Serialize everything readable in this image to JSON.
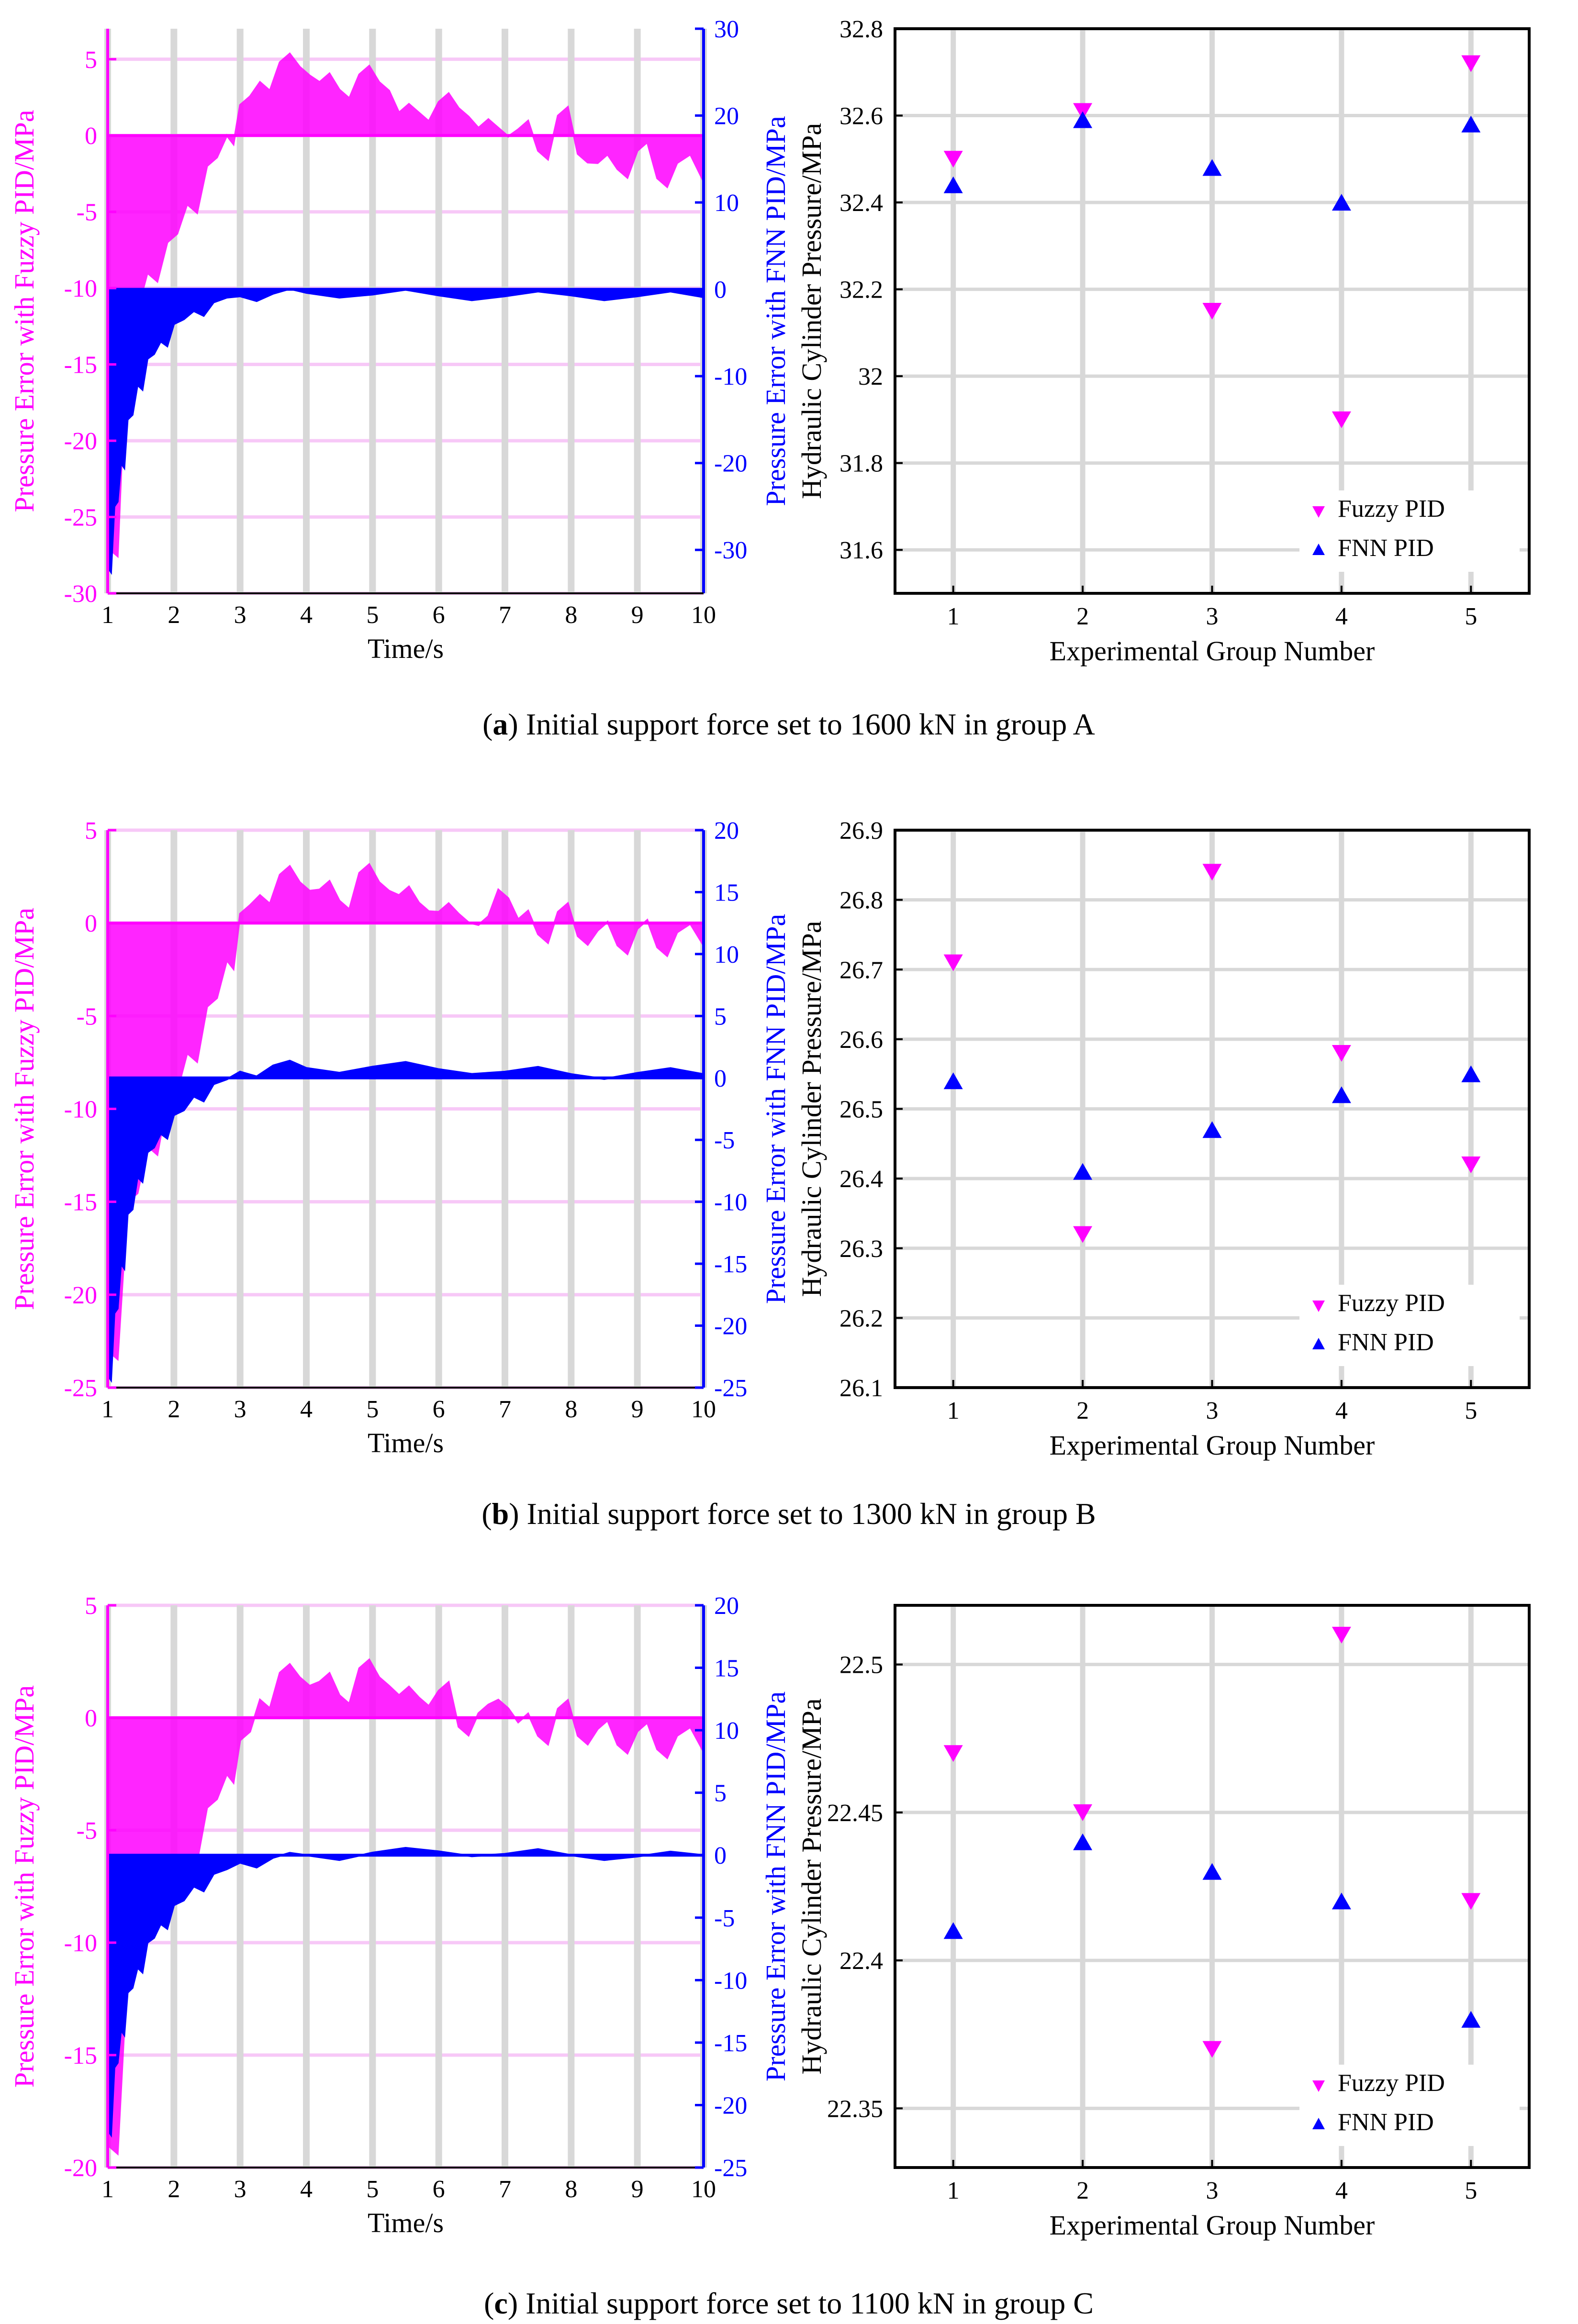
{
  "colors": {
    "fuzzy": "#ff00ff",
    "fnn": "#0000ff",
    "grid_gray": "#d8d8d8",
    "grid_pink": "#f7c8f7"
  },
  "panels": [
    {
      "id": "a",
      "caption": {
        "letter": "a",
        "text": " Initial support force set to 1600 kN in group A"
      },
      "error_chart": {
        "type": "area",
        "xlabel": "Time/s",
        "ylabel_left": "Pressure Error with Fuzzy PID/MPa",
        "ylabel_right": "Pressure Error with FNN PID/MPa",
        "xlim": [
          1,
          10
        ],
        "x_ticks": [
          "1",
          "2",
          "3",
          "4",
          "5",
          "6",
          "7",
          "8",
          "9",
          "10"
        ],
        "left_ylim": [
          -30,
          7
        ],
        "left_ticks": [
          "5",
          "0",
          "-5",
          "-10",
          "-15",
          "-20",
          "-25",
          "-30"
        ],
        "right_ylim": [
          -35,
          30
        ],
        "right_ticks": [
          "30",
          "20",
          "10",
          "0",
          "-10",
          "-20",
          "-30"
        ],
        "fuzzy_pid": {
          "x": [
            1,
            1.3,
            1.6,
            1.9,
            2.2,
            2.5,
            2.8,
            3.0,
            3.3,
            3.6,
            3.9,
            4.2,
            4.5,
            4.8,
            5.1,
            5.4,
            5.7,
            6.0,
            6.3,
            6.6,
            6.9,
            7.2,
            7.5,
            7.8,
            8.1,
            8.4,
            8.7,
            9.0,
            9.3,
            9.6,
            10
          ],
          "y": [
            -27,
            -12,
            -9,
            -7,
            -4.5,
            -2,
            0,
            2,
            3.5,
            4.8,
            4.5,
            3.5,
            3,
            4,
            3.5,
            1.5,
            1.5,
            2.2,
            1.8,
            0.5,
            0.5,
            0.4,
            -1,
            1.3,
            -1.2,
            -1.8,
            -2.2,
            -1,
            -2.8,
            -1.8,
            -3
          ]
        },
        "fnn_pid": {
          "x": [
            1,
            1.1,
            1.2,
            1.3,
            1.45,
            1.6,
            1.8,
            2.0,
            2.3,
            2.6,
            3.0,
            3.5,
            4.0,
            5.0,
            6.0,
            7.0,
            8.0,
            9.0,
            10
          ],
          "y": [
            -32,
            -25,
            -20,
            -15,
            -11,
            -8,
            -6,
            -4,
            -2.5,
            -1.5,
            -0.8,
            -0.5,
            -0.4,
            -0.6,
            -0.7,
            -0.8,
            -0.7,
            -0.8,
            -0.9
          ]
        }
      },
      "scatter_chart": {
        "type": "scatter",
        "xlabel": "Experimental Group Number",
        "ylabel": "Hydraulic Cylinder Pressure/MPa",
        "xlim": [
          0.55,
          5.45
        ],
        "ylim": [
          31.5,
          32.8
        ],
        "x": [
          1,
          2,
          3,
          4,
          5
        ],
        "x_ticks": [
          "1",
          "2",
          "3",
          "4",
          "5"
        ],
        "y_ticks": [
          "32.8",
          "32.6",
          "32.4",
          "32.2",
          "32",
          "31.8",
          "31.6"
        ],
        "y_tick_values": [
          32.8,
          32.6,
          32.4,
          32.2,
          32.0,
          31.8,
          31.6
        ],
        "series": [
          {
            "name": "Fuzzy PID",
            "values": [
              32.5,
              32.61,
              32.15,
              31.9,
              32.72
            ]
          },
          {
            "name": "FNN PID",
            "values": [
              32.44,
              32.59,
              32.48,
              32.4,
              32.58
            ]
          }
        ]
      }
    },
    {
      "id": "b",
      "caption": {
        "letter": "b",
        "text": " Initial support force set to 1300 kN in group B"
      },
      "error_chart": {
        "type": "area",
        "xlabel": "Time/s",
        "ylabel_left": "Pressure Error with Fuzzy PID/MPa",
        "ylabel_right": "Pressure Error with FNN PID/MPa",
        "xlim": [
          1,
          10
        ],
        "x_ticks": [
          "1",
          "2",
          "3",
          "4",
          "5",
          "6",
          "7",
          "8",
          "9",
          "10"
        ],
        "left_ylim": [
          -25,
          5
        ],
        "left_ticks": [
          "5",
          "0",
          "-5",
          "-10",
          "-15",
          "-20",
          "-25"
        ],
        "right_ylim": [
          -25,
          20
        ],
        "right_ticks": [
          "20",
          "15",
          "10",
          "5",
          "0",
          "-5",
          "-10",
          "-15",
          "-20",
          "-25"
        ],
        "fuzzy_pid": {
          "x": [
            1,
            1.3,
            1.6,
            1.9,
            2.2,
            2.5,
            2.8,
            3.0,
            3.3,
            3.6,
            3.9,
            4.2,
            4.5,
            4.8,
            5.1,
            5.4,
            5.7,
            6.0,
            6.3,
            6.6,
            6.9,
            7.2,
            7.5,
            7.8,
            8.1,
            8.4,
            8.7,
            9.0,
            9.3,
            9.6,
            10
          ],
          "y": [
            -23,
            -15,
            -12,
            -9.5,
            -7,
            -4.5,
            -2,
            0.5,
            1.5,
            2.6,
            2.2,
            1.8,
            1.2,
            2.7,
            2.2,
            1.5,
            1.1,
            0.6,
            0.5,
            -0.1,
            1.8,
            0.2,
            -0.6,
            0.6,
            -0.7,
            -0.4,
            -1.2,
            -0.3,
            -1.3,
            -0.5,
            -1.2
          ]
        },
        "fnn_pid": {
          "x": [
            1,
            1.1,
            1.2,
            1.3,
            1.45,
            1.6,
            1.8,
            2.0,
            2.3,
            2.6,
            3.0,
            3.5,
            4.0,
            5.0,
            6.0,
            7.0,
            8.0,
            9.0,
            10
          ],
          "y": [
            -24,
            -19,
            -15,
            -11,
            -8,
            -6,
            -4.5,
            -3,
            -1.5,
            -0.5,
            0.5,
            1,
            0.8,
            0.9,
            0.7,
            0.5,
            0.3,
            0.4,
            0.3
          ]
        }
      },
      "scatter_chart": {
        "type": "scatter",
        "xlabel": "Experimental Group Number",
        "ylabel": "Hydraulic Cylinder Pressure/MPa",
        "xlim": [
          0.55,
          5.45
        ],
        "ylim": [
          26.1,
          26.9
        ],
        "x": [
          1,
          2,
          3,
          4,
          5
        ],
        "x_ticks": [
          "1",
          "2",
          "3",
          "4",
          "5"
        ],
        "y_ticks": [
          "26.9",
          "26.8",
          "26.7",
          "26.6",
          "26.5",
          "26.4",
          "26.3",
          "26.2",
          "26.1"
        ],
        "y_tick_values": [
          26.9,
          26.8,
          26.7,
          26.6,
          26.5,
          26.4,
          26.3,
          26.2,
          26.1
        ],
        "series": [
          {
            "name": "Fuzzy PID",
            "values": [
              26.71,
              26.32,
              26.84,
              26.58,
              26.42
            ]
          },
          {
            "name": "FNN PID",
            "values": [
              26.54,
              26.41,
              26.47,
              26.52,
              26.55
            ]
          }
        ]
      }
    },
    {
      "id": "c",
      "caption": {
        "letter": "c",
        "text": " Initial support force set to 1100 kN in group C"
      },
      "error_chart": {
        "type": "area",
        "xlabel": "Time/s",
        "ylabel_left": "Pressure Error with Fuzzy PID/MPa",
        "ylabel_right": "Pressure Error with FNN PID/MPa",
        "xlim": [
          1,
          10
        ],
        "x_ticks": [
          "1",
          "2",
          "3",
          "4",
          "5",
          "6",
          "7",
          "8",
          "9",
          "10"
        ],
        "left_ylim": [
          -20,
          5
        ],
        "left_ticks": [
          "5",
          "0",
          "-5",
          "-10",
          "-15",
          "-20"
        ],
        "right_ylim": [
          -25,
          20
        ],
        "right_ticks": [
          "20",
          "15",
          "10",
          "5",
          "0",
          "-5",
          "-10",
          "-15",
          "-20",
          "-25"
        ],
        "fuzzy_pid": {
          "x": [
            1,
            1.3,
            1.6,
            1.9,
            2.2,
            2.5,
            2.8,
            3.0,
            3.3,
            3.6,
            3.9,
            4.2,
            4.5,
            4.8,
            5.1,
            5.4,
            5.7,
            6.0,
            6.3,
            6.6,
            6.9,
            7.2,
            7.5,
            7.8,
            8.1,
            8.4,
            8.7,
            9.0,
            9.3,
            9.6,
            10
          ],
          "y": [
            -19,
            -11,
            -9,
            -7.5,
            -6,
            -4,
            -2.5,
            -1,
            0.8,
            2,
            1.8,
            1.6,
            1,
            2.2,
            1.8,
            1,
            0.9,
            1.2,
            -0.4,
            0.2,
            0.8,
            -0.2,
            -0.8,
            0.4,
            -0.8,
            -0.5,
            -1.2,
            -0.6,
            -1.4,
            -0.8,
            -1.5
          ]
        },
        "fnn_pid": {
          "x": [
            1,
            1.1,
            1.2,
            1.3,
            1.45,
            1.6,
            1.8,
            2.0,
            2.3,
            2.6,
            3.0,
            3.5,
            4.0,
            5.0,
            6.0,
            7.0,
            8.0,
            9.0,
            10
          ],
          "y": [
            -22,
            -17,
            -14,
            -11,
            -9,
            -7,
            -5.5,
            -4,
            -2.5,
            -1.5,
            -0.6,
            -0.2,
            0,
            0.2,
            0.3,
            0.1,
            0,
            -0.1,
            0
          ]
        }
      },
      "scatter_chart": {
        "type": "scatter",
        "xlabel": "Experimental Group Number",
        "ylabel": "Hydraulic Cylinder Pressure/MPa",
        "xlim": [
          0.55,
          5.45
        ],
        "ylim": [
          22.33,
          22.52
        ],
        "x": [
          1,
          2,
          3,
          4,
          5
        ],
        "x_ticks": [
          "1",
          "2",
          "3",
          "4",
          "5"
        ],
        "y_ticks": [
          "22.5",
          "22.45",
          "22.4",
          "22.35"
        ],
        "y_tick_values": [
          22.5,
          22.45,
          22.4,
          22.35
        ],
        "series": [
          {
            "name": "Fuzzy PID",
            "values": [
              22.47,
              22.45,
              22.37,
              22.51,
              22.42
            ]
          },
          {
            "name": "FNN PID",
            "values": [
              22.41,
              22.44,
              22.43,
              22.42,
              22.38
            ]
          }
        ]
      }
    }
  ]
}
